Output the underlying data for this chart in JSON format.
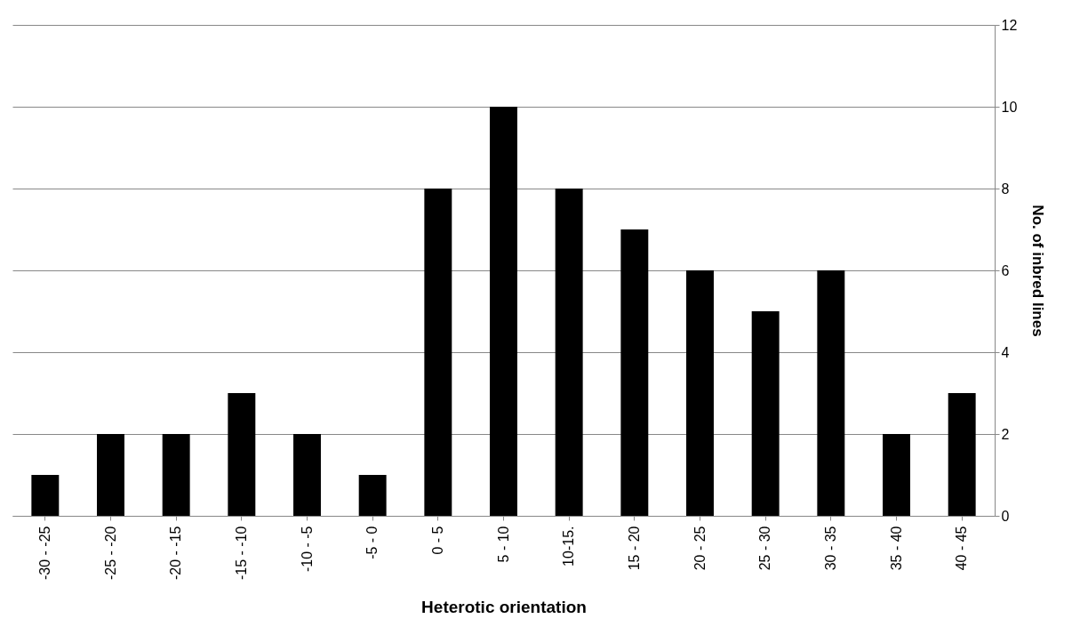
{
  "chart_data": {
    "type": "bar",
    "xlabel": "Heterotic orientation",
    "ylabel": "No. of inbred lines",
    "categories": [
      "-30 - -25",
      "-25 - -20",
      "-20 - -15",
      "-15 - -10",
      "-10 - -5",
      "-5 - 0",
      "0 - 5",
      "5 - 10",
      "10-15.",
      "15 - 20",
      "20 - 25",
      "25 - 30",
      "30 - 35",
      "35 - 40",
      "40 - 45"
    ],
    "values": [
      1,
      2,
      2,
      3,
      2,
      1,
      8,
      10,
      8,
      7,
      6,
      5,
      6,
      2,
      3
    ],
    "color": "#000000",
    "ylim": [
      0,
      12
    ],
    "yticks": [
      0,
      2,
      4,
      6,
      8,
      10,
      12
    ],
    "grid": "y"
  }
}
